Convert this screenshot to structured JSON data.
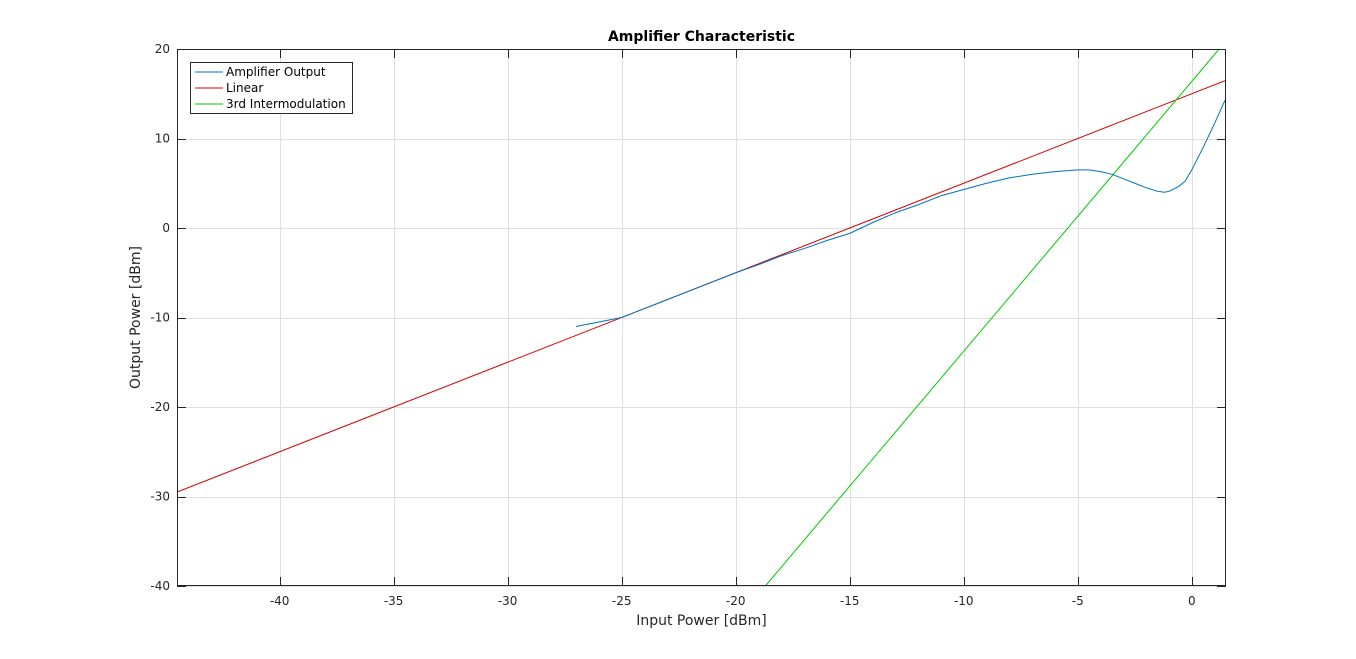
{
  "chart_data": {
    "type": "line",
    "title": "Amplifier Characteristic",
    "xlabel": "Input Power [dBm]",
    "ylabel": "Output Power [dBm]",
    "xlim": [
      -44.5,
      1.5
    ],
    "ylim": [
      -40,
      20
    ],
    "xticks": [
      -40,
      -35,
      -30,
      -25,
      -20,
      -15,
      -10,
      -5,
      0
    ],
    "yticks": [
      -40,
      -30,
      -20,
      -10,
      0,
      10,
      20
    ],
    "grid": true,
    "legend_position": "top-left",
    "series": [
      {
        "name": "Amplifier Output",
        "color": "#0072bd",
        "x": [
          -27,
          -25,
          -23,
          -21,
          -20,
          -19,
          -18,
          -17,
          -16,
          -15,
          -14,
          -13,
          -12,
          -11,
          -10,
          -9,
          -8,
          -7,
          -6,
          -5,
          -4.5,
          -4,
          -3.5,
          -3,
          -2.5,
          -2,
          -1.5,
          -1.2,
          -1,
          -0.6,
          -0.3,
          0,
          0.5,
          1,
          1.5
        ],
        "y": [
          -11,
          -10,
          -8,
          -6,
          -5,
          -4.1,
          -3.1,
          -2.3,
          -1.4,
          -0.6,
          0.6,
          1.7,
          2.6,
          3.6,
          4.3,
          5.0,
          5.6,
          6.0,
          6.3,
          6.5,
          6.5,
          6.3,
          6.0,
          5.5,
          5.0,
          4.5,
          4.1,
          4.0,
          4.1,
          4.6,
          5.2,
          6.5,
          9.0,
          11.7,
          14.5
        ]
      },
      {
        "name": "Linear",
        "color": "#d40000",
        "x": [
          -44.5,
          1.5
        ],
        "y": [
          -29.5,
          16.5
        ]
      },
      {
        "name": "3rd Intermodulation",
        "color": "#00cc00",
        "x": [
          -18.7,
          1.2
        ],
        "y": [
          -40,
          20
        ]
      }
    ]
  }
}
